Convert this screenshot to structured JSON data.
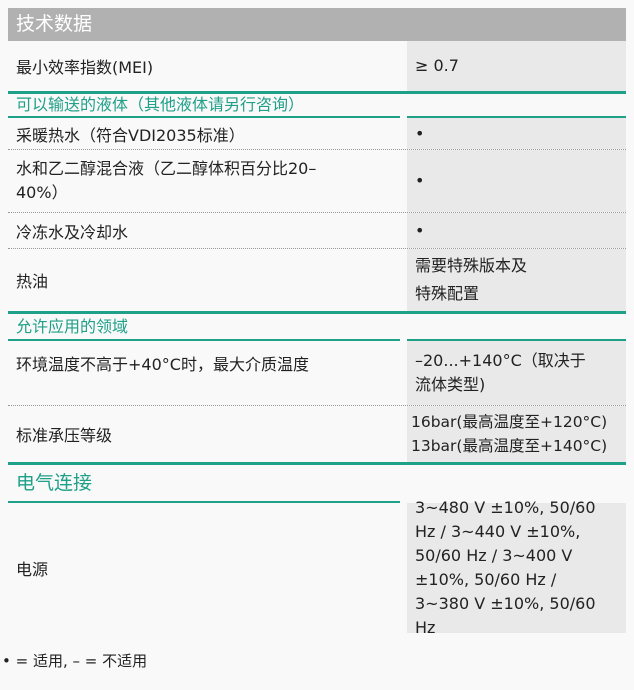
{
  "title": "技术数据",
  "rows": [
    {
      "label": "最小效率指数(MEI)",
      "value": "≥ 0.7"
    }
  ],
  "sections": [
    {
      "title": "可以输送的液体（其他液体请另行咨询）",
      "rows": [
        {
          "label": "采暖热水（符合VDI2035标准）",
          "value": "•"
        },
        {
          "label": "水和乙二醇混合液（乙二醇体积百分比20–40%）",
          "value": "•"
        },
        {
          "label": "冷冻水及冷却水",
          "value": "•"
        },
        {
          "label": "热油",
          "value": "需要特殊版本及特殊配置"
        }
      ]
    },
    {
      "title": "允许应用的领域",
      "rows": [
        {
          "label": "环境温度不高于+40°C时，最大介质温度",
          "value": "–20...+140°C（取决于流体类型)"
        },
        {
          "label": "标准承压等级",
          "value": "16bar(最高温度至+120°C) 13bar(最高温度至+140°C)"
        }
      ]
    },
    {
      "title": "电气连接",
      "rows": [
        {
          "label": "电源",
          "value": "3~480 V ±10%, 50/60 Hz / 3~440 V ±10%, 50/60 Hz / 3~400 V ±10%, 50/60 Hz / 3~380 V ±10%, 50/60 Hz"
        }
      ]
    }
  ],
  "footnote": "• = 适用, – = 不适用",
  "colors": {
    "accent": "#1fa088",
    "header_bg": "#b1b1b1",
    "value_bg": "#e9e9e9"
  }
}
